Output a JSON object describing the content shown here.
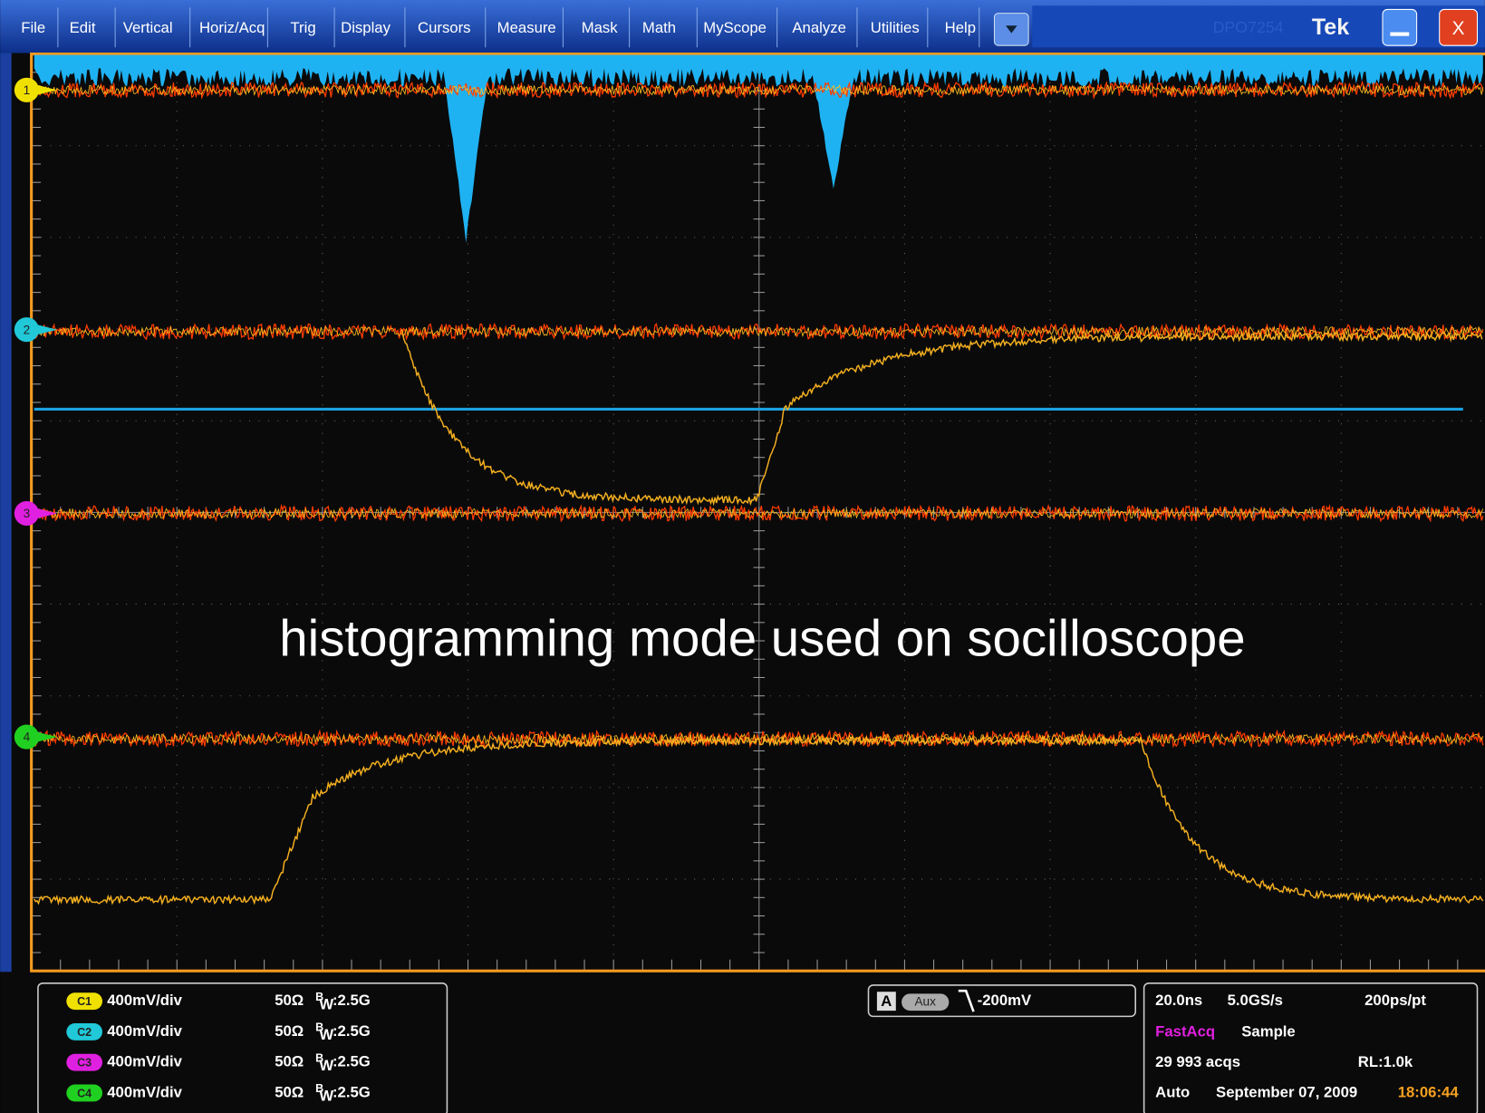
{
  "menu": [
    "File",
    "Edit",
    "Vertical",
    "Horiz/Acq",
    "Trig",
    "Display",
    "Cursors",
    "Measure",
    "Mask",
    "Math",
    "MyScope",
    "Analyze",
    "Utilities",
    "Help"
  ],
  "title_bar": {
    "model": "DPO7254",
    "brand": "Tek",
    "close": "X"
  },
  "channel_markers": [
    "1",
    "2",
    "3",
    "4"
  ],
  "annotation": "histogramming mode used on socilloscope",
  "channels": [
    {
      "label": "C1",
      "scale": "400mV/div",
      "impedance": "50Ω",
      "bw_sup": "B",
      "bw_sub": "W",
      "bw": ":2.5G"
    },
    {
      "label": "C2",
      "scale": "400mV/div",
      "impedance": "50Ω",
      "bw_sup": "B",
      "bw_sub": "W",
      "bw": ":2.5G"
    },
    {
      "label": "C3",
      "scale": "400mV/div",
      "impedance": "50Ω",
      "bw_sup": "B",
      "bw_sub": "W",
      "bw": ":2.5G"
    },
    {
      "label": "C4",
      "scale": "400mV/div",
      "impedance": "50Ω",
      "bw_sup": "B",
      "bw_sub": "W",
      "bw": ":2.5G"
    }
  ],
  "trigger": {
    "source_label": "A",
    "source": "Aux",
    "level": "-200mV"
  },
  "acquisition": {
    "timebase": "20.0ns",
    "sample_rate": "5.0GS/s",
    "resolution": "200ps/pt",
    "mode": "FastAcq",
    "sampling": "Sample",
    "acquisitions": "29 993 acqs",
    "record_length": "RL:1.0k",
    "trigger_mode": "Auto",
    "date": "September 07, 2009",
    "time": "18:06:44"
  }
}
